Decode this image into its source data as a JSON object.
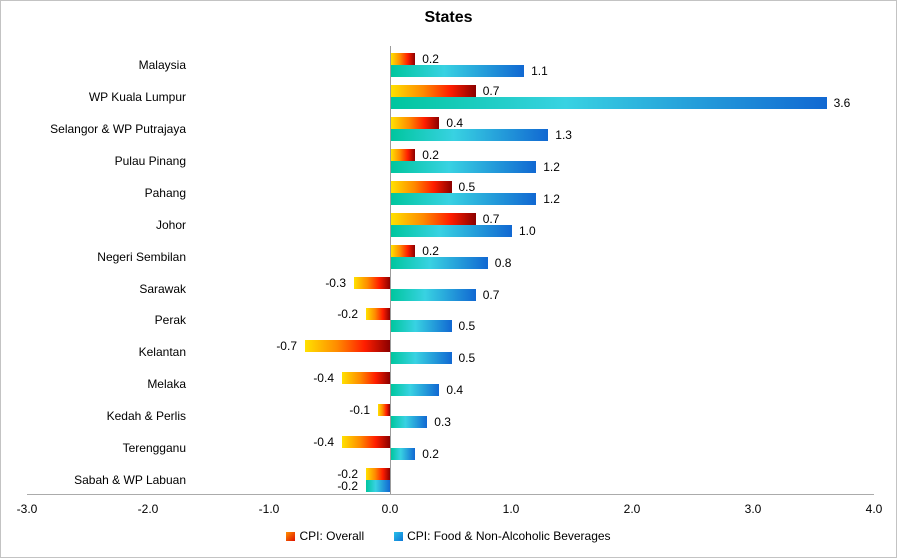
{
  "chart_data": {
    "type": "bar",
    "orientation": "horizontal",
    "title": "States",
    "categories": [
      "Malaysia",
      "WP Kuala Lumpur",
      "Selangor & WP Putrajaya",
      "Pulau Pinang",
      "Pahang",
      "Johor",
      "Negeri Sembilan",
      "Sarawak",
      "Perak",
      "Kelantan",
      "Melaka",
      "Kedah & Perlis",
      "Terengganu",
      "Sabah & WP Labuan"
    ],
    "series": [
      {
        "name": "CPI: Overall",
        "values": [
          0.2,
          0.7,
          0.4,
          0.2,
          0.5,
          0.7,
          0.2,
          -0.3,
          -0.2,
          -0.7,
          -0.4,
          -0.1,
          -0.4,
          -0.2
        ],
        "labels": [
          "0.2",
          "0.7",
          "0.4",
          "0.2",
          "0.5",
          "0.7",
          "0.2",
          "-0.3",
          "-0.2",
          "-0.7",
          "-0.4",
          "-0.1",
          "-0.4",
          "-0.2"
        ],
        "gradient_colors": [
          "#FFE100",
          "#FF8A00",
          "#FF1E00",
          "#8B0000"
        ],
        "gradient_positions": [
          "0%",
          "38%",
          "70%",
          "100%"
        ],
        "legend_marker_colors": [
          "#FF9000",
          "#DE1000"
        ]
      },
      {
        "name": "CPI: Food & Non-Alcoholic Beverages",
        "values": [
          1.1,
          3.6,
          1.3,
          1.2,
          1.2,
          1.0,
          0.8,
          0.7,
          0.5,
          0.5,
          0.4,
          0.3,
          0.2,
          -0.2
        ],
        "labels": [
          "1.1",
          "3.6",
          "1.3",
          "1.2",
          "1.2",
          "1.0",
          "0.8",
          "0.7",
          "0.5",
          "0.5",
          "0.4",
          "0.3",
          "0.2",
          "-0.2"
        ],
        "gradient_colors": [
          "#00C69E",
          "#38D2E2",
          "#1168D2"
        ],
        "gradient_positions": [
          "0%",
          "40%",
          "100%"
        ],
        "legend_marker_colors": [
          "#28C0E8",
          "#0E78D8"
        ]
      }
    ],
    "xlim": [
      -3.0,
      4.0
    ],
    "x_ticks": [
      "-3.0",
      "-2.0",
      "-1.0",
      "0.0",
      "1.0",
      "2.0",
      "3.0",
      "4.0"
    ],
    "x_tick_values": [
      -3,
      -2,
      -1,
      0,
      1,
      2,
      3,
      4
    ],
    "grid": false,
    "legend_position": "bottom"
  },
  "colors": {
    "background": "#ffffff",
    "border": "#c3c3c3",
    "axis_line": "#ababab",
    "zero_line": "#9c9c9c",
    "text": "#000000"
  }
}
